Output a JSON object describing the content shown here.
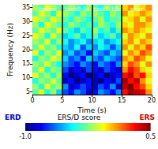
{
  "chart_data": {
    "type": "heatmap",
    "xlabel": "Time (s)",
    "ylabel": "Frequency (Hz)",
    "xlim": [
      0,
      20
    ],
    "xticks": [
      0,
      5,
      10,
      15,
      20
    ],
    "ylim": [
      4,
      36
    ],
    "yticks": [
      5,
      10,
      15,
      20,
      25,
      30,
      35
    ],
    "segments": [
      {
        "label": "before",
        "start": 0,
        "end": 5
      },
      {
        "label": "task0-5s",
        "start": 5,
        "end": 10
      },
      {
        "label": "task5-10s",
        "start": 10,
        "end": 15
      },
      {
        "label": "after",
        "start": 15,
        "end": 20
      }
    ],
    "time_bins": [
      0.5,
      1.5,
      2.5,
      3.5,
      4.5,
      5.5,
      6.5,
      7.5,
      8.5,
      9.5,
      10.5,
      11.5,
      12.5,
      13.5,
      14.5,
      15.5,
      16.5,
      17.5,
      18.5,
      19.5
    ],
    "freq_bins": [
      5,
      7,
      9,
      11,
      13,
      15,
      17,
      19,
      21,
      23,
      25,
      27,
      29,
      31,
      33,
      35
    ],
    "values": [
      [
        -0.3,
        -0.1,
        -0.4,
        -0.2,
        -0.5,
        -0.7,
        -0.8,
        -0.6,
        -0.7,
        -0.9,
        -0.8,
        -0.6,
        -0.7,
        -0.8,
        -0.6,
        0.3,
        0.45,
        0.4,
        0.35,
        0.1
      ],
      [
        -0.2,
        -0.4,
        -0.1,
        -0.3,
        -0.2,
        -0.6,
        -0.9,
        -0.8,
        -0.7,
        -0.8,
        -0.9,
        -0.7,
        -0.8,
        -0.6,
        -0.9,
        0.4,
        0.5,
        0.3,
        0.2,
        0.0
      ],
      [
        -0.4,
        -0.2,
        -0.3,
        -0.1,
        -0.3,
        -0.9,
        -0.8,
        -1.0,
        -0.9,
        -0.8,
        -0.9,
        -1.0,
        -0.8,
        -0.9,
        -0.7,
        0.45,
        0.3,
        0.4,
        0.1,
        -0.1
      ],
      [
        -0.1,
        -0.3,
        -0.2,
        -0.4,
        -0.2,
        -0.8,
        -1.0,
        -0.9,
        -0.8,
        -1.0,
        -0.9,
        -0.8,
        -1.0,
        -0.9,
        -0.8,
        0.3,
        0.4,
        0.2,
        0.3,
        0.0
      ],
      [
        -0.3,
        -0.1,
        -0.4,
        -0.2,
        -0.3,
        -0.7,
        -0.9,
        -0.8,
        -0.9,
        -0.7,
        -0.8,
        -0.9,
        -0.7,
        -0.8,
        -0.9,
        0.1,
        0.3,
        0.2,
        0.0,
        -0.1
      ],
      [
        -0.2,
        -0.3,
        -0.1,
        -0.3,
        -0.4,
        -0.6,
        -0.7,
        -0.8,
        -0.6,
        -0.7,
        -0.8,
        -0.6,
        -0.7,
        -0.8,
        -0.6,
        0.0,
        0.2,
        0.1,
        -0.1,
        0.1
      ],
      [
        -0.4,
        -0.2,
        -0.3,
        -0.1,
        -0.2,
        -0.5,
        -0.7,
        -0.6,
        -0.8,
        -0.5,
        -0.6,
        -0.7,
        -0.5,
        -0.6,
        -0.7,
        0.1,
        0.0,
        0.2,
        0.1,
        -0.1
      ],
      [
        -0.1,
        -0.4,
        -0.2,
        -0.3,
        -0.1,
        -0.6,
        -0.5,
        -0.7,
        -0.6,
        -0.8,
        -0.5,
        -0.6,
        -0.7,
        -0.5,
        -0.6,
        -0.1,
        0.1,
        0.0,
        0.2,
        0.1
      ],
      [
        -0.3,
        -0.1,
        -0.3,
        -0.2,
        -0.4,
        -0.5,
        -0.6,
        -0.4,
        -0.7,
        -0.5,
        -0.6,
        -0.4,
        -0.5,
        -0.7,
        -0.5,
        0.1,
        -0.1,
        0.1,
        0.0,
        0.2
      ],
      [
        -0.2,
        -0.3,
        -0.1,
        -0.4,
        -0.2,
        -0.4,
        -0.6,
        -0.5,
        -0.4,
        -0.6,
        -0.5,
        -0.4,
        -0.6,
        -0.5,
        -0.4,
        0.0,
        0.1,
        -0.1,
        0.1,
        0.0
      ],
      [
        -0.1,
        -0.2,
        -0.4,
        -0.1,
        -0.3,
        -0.5,
        -0.4,
        -0.3,
        -0.5,
        -0.4,
        -0.3,
        -0.5,
        -0.4,
        -0.3,
        -0.5,
        -0.1,
        0.1,
        0.0,
        -0.1,
        0.1
      ],
      [
        -0.3,
        -0.1,
        -0.2,
        -0.3,
        -0.1,
        -0.3,
        -0.4,
        -0.5,
        -0.3,
        -0.4,
        -0.2,
        -0.4,
        -0.3,
        -0.5,
        -0.3,
        0.1,
        0.0,
        0.1,
        0.0,
        -0.1
      ],
      [
        -0.2,
        -0.4,
        -0.1,
        -0.2,
        -0.3,
        -0.4,
        -0.2,
        -0.3,
        -0.4,
        -0.3,
        -0.4,
        -0.2,
        -0.3,
        -0.4,
        -0.2,
        0.0,
        -0.1,
        0.1,
        0.1,
        0.0
      ],
      [
        -0.1,
        -0.2,
        -0.3,
        -0.1,
        -0.2,
        -0.3,
        -0.4,
        -0.2,
        -0.3,
        -0.4,
        -0.3,
        -0.2,
        -0.4,
        -0.3,
        -0.3,
        -0.1,
        0.0,
        0.1,
        -0.1,
        0.1
      ],
      [
        -0.3,
        -0.1,
        -0.2,
        -0.4,
        -0.1,
        -0.2,
        -0.3,
        -0.4,
        -0.2,
        -0.3,
        -0.2,
        -0.3,
        -0.4,
        -0.2,
        -0.3,
        0.1,
        -0.1,
        0.0,
        0.1,
        0.0
      ],
      [
        -0.2,
        -0.3,
        -0.1,
        -0.2,
        -0.3,
        -0.3,
        -0.2,
        -0.3,
        -0.4,
        -0.2,
        -0.3,
        -0.4,
        -0.2,
        -0.3,
        -0.2,
        0.0,
        0.1,
        -0.1,
        0.0,
        0.1
      ]
    ],
    "colorbar": {
      "label": "ERS/D score",
      "low_label": "ERD",
      "high_label": "ERS",
      "range": [
        -1,
        0.5
      ],
      "ticks": [
        {
          "value": -1,
          "label": "-1.0"
        },
        {
          "value": 0.5,
          "label": "0.5"
        }
      ]
    }
  }
}
